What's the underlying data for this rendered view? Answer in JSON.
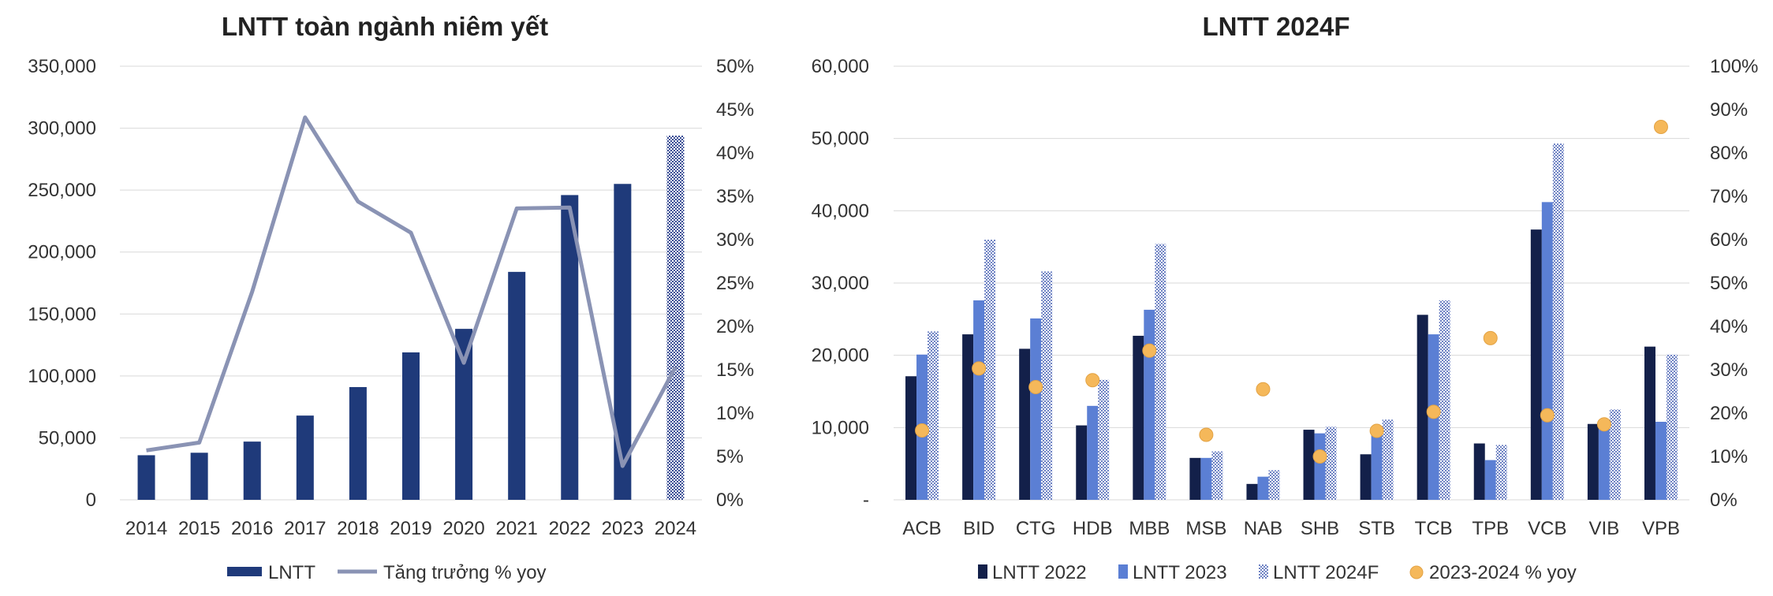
{
  "chart_data": [
    {
      "type": "bar",
      "title": "LNTT toàn ngành niêm yết",
      "categories": [
        "2014",
        "2015",
        "2016",
        "2017",
        "2018",
        "2019",
        "2020",
        "2021",
        "2022",
        "2023",
        "2024"
      ],
      "series": [
        {
          "name": "LNTT",
          "kind": "bar",
          "axis": "left",
          "values": [
            36000,
            38000,
            47000,
            68000,
            91000,
            119000,
            138000,
            184000,
            246000,
            255000,
            294000
          ],
          "pattern_last": true
        },
        {
          "name": "Tăng trưởng % yoy",
          "kind": "line",
          "axis": "right",
          "values": [
            5.7,
            6.6,
            24.0,
            44.1,
            34.4,
            30.8,
            15.8,
            33.6,
            33.7,
            3.9,
            15.3
          ]
        }
      ],
      "ylim_left": [
        0,
        350000
      ],
      "ylim_right": [
        0,
        50
      ],
      "yticks_left": [
        "0",
        "50,000",
        "100,000",
        "150,000",
        "200,000",
        "250,000",
        "300,000",
        "350,000"
      ],
      "yticks_right": [
        "0%",
        "5%",
        "10%",
        "15%",
        "20%",
        "25%",
        "30%",
        "35%",
        "40%",
        "45%",
        "50%"
      ],
      "grid": true,
      "legend": "bottom",
      "colors": {
        "bar": "#1f3a7a",
        "line": "#8a93b4"
      }
    },
    {
      "type": "bar",
      "title": "LNTT 2024F",
      "categories": [
        "ACB",
        "BID",
        "CTG",
        "HDB",
        "MBB",
        "MSB",
        "NAB",
        "SHB",
        "STB",
        "TCB",
        "TPB",
        "VCB",
        "VIB",
        "VPB"
      ],
      "series": [
        {
          "name": "LNTT 2022",
          "kind": "bar",
          "axis": "left",
          "values": [
            17100,
            22900,
            20900,
            10300,
            22700,
            5800,
            2200,
            9700,
            6300,
            25600,
            7800,
            37400,
            10500,
            21200
          ]
        },
        {
          "name": "LNTT 2023",
          "kind": "bar",
          "axis": "left",
          "values": [
            20100,
            27600,
            25100,
            13000,
            26300,
            5800,
            3200,
            9200,
            9000,
            22900,
            5500,
            41200,
            10600,
            10800
          ]
        },
        {
          "name": "LNTT 2024F",
          "kind": "bar",
          "axis": "left",
          "pattern": true,
          "values": [
            23300,
            36000,
            31600,
            16600,
            35400,
            6700,
            4100,
            10100,
            11100,
            27600,
            7600,
            49300,
            12500,
            20100
          ]
        },
        {
          "name": "2023-2024 % yoy",
          "kind": "scatter",
          "axis": "right",
          "values": [
            16,
            30.3,
            26,
            27.6,
            34.4,
            15,
            25.5,
            10,
            15.9,
            20.3,
            37.3,
            19.5,
            17.4,
            86
          ]
        }
      ],
      "ylim_left": [
        0,
        60000
      ],
      "ylim_right": [
        0,
        100
      ],
      "yticks_left": [
        "-",
        "10,000",
        "20,000",
        "30,000",
        "40,000",
        "50,000",
        "60,000"
      ],
      "yticks_right": [
        "0%",
        "10%",
        "20%",
        "30%",
        "40%",
        "50%",
        "60%",
        "70%",
        "80%",
        "90%",
        "100%"
      ],
      "grid": true,
      "legend": "bottom",
      "colors": {
        "s2022": "#13204a",
        "s2023": "#5b7fd4",
        "s2024f": "#8a9bd0",
        "dot": "#f5b85a"
      }
    }
  ]
}
